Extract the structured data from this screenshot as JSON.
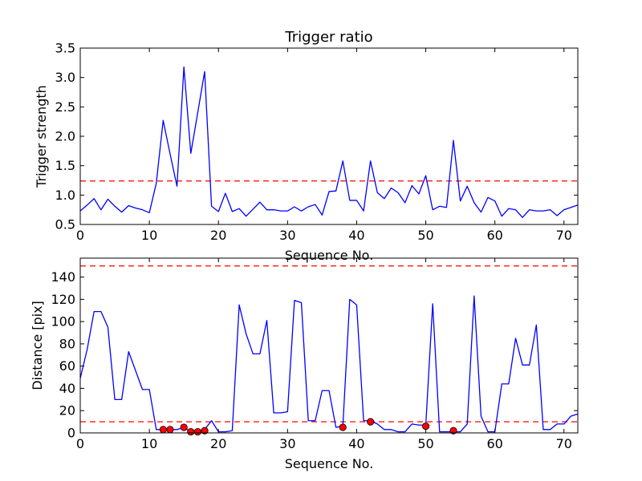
{
  "chart_data": [
    {
      "type": "line",
      "title": "Trigger ratio",
      "xlabel": "Sequence No.",
      "ylabel": "Trigger strength",
      "xlim": [
        0,
        72
      ],
      "ylim": [
        0.5,
        3.5
      ],
      "xticks": [
        "0",
        "10",
        "20",
        "30",
        "40",
        "50",
        "60",
        "70"
      ],
      "yticks": [
        "0.5",
        "1.0",
        "1.5",
        "2.0",
        "2.5",
        "3.0",
        "3.5"
      ],
      "x": [
        0,
        1,
        2,
        3,
        4,
        5,
        6,
        7,
        8,
        9,
        10,
        11,
        12,
        13,
        14,
        15,
        16,
        17,
        18,
        19,
        20,
        21,
        22,
        23,
        24,
        25,
        26,
        27,
        28,
        29,
        30,
        31,
        32,
        33,
        34,
        35,
        36,
        37,
        38,
        39,
        40,
        41,
        42,
        43,
        44,
        45,
        46,
        47,
        48,
        49,
        50,
        51,
        52,
        53,
        54,
        55,
        56,
        57,
        58,
        59,
        60,
        61,
        62,
        63,
        64,
        65,
        66,
        67,
        68,
        69,
        70,
        71,
        72
      ],
      "series": [
        {
          "color": "#0000ff",
          "values": [
            0.73,
            0.83,
            0.94,
            0.75,
            0.93,
            0.81,
            0.71,
            0.82,
            0.78,
            0.75,
            0.7,
            1.2,
            2.27,
            1.7,
            1.15,
            3.18,
            1.71,
            2.4,
            3.1,
            0.81,
            0.72,
            1.03,
            0.72,
            0.77,
            0.64,
            0.76,
            0.88,
            0.75,
            0.75,
            0.73,
            0.73,
            0.8,
            0.73,
            0.8,
            0.84,
            0.66,
            1.06,
            1.07,
            1.58,
            0.91,
            0.91,
            0.73,
            1.58,
            1.04,
            0.94,
            1.12,
            1.04,
            0.87,
            1.16,
            1.02,
            1.33,
            0.75,
            0.81,
            0.79,
            1.93,
            0.9,
            1.15,
            0.87,
            0.71,
            0.96,
            0.9,
            0.64,
            0.77,
            0.75,
            0.62,
            0.75,
            0.73,
            0.73,
            0.75,
            0.65,
            0.75,
            0.79,
            0.83
          ]
        }
      ],
      "hlines": [
        {
          "y": 1.24,
          "color": "#ff0000",
          "style": "dashed"
        }
      ]
    },
    {
      "type": "line",
      "title": "",
      "xlabel": "Sequence No.",
      "ylabel": "Distance [pix]",
      "xlim": [
        0,
        72
      ],
      "ylim": [
        0,
        157
      ],
      "xticks": [
        "0",
        "10",
        "20",
        "30",
        "40",
        "50",
        "60",
        "70"
      ],
      "yticks": [
        "0",
        "20",
        "40",
        "60",
        "80",
        "100",
        "120",
        "140"
      ],
      "x": [
        0,
        1,
        2,
        3,
        4,
        5,
        6,
        7,
        8,
        9,
        10,
        11,
        12,
        13,
        14,
        15,
        16,
        17,
        18,
        19,
        20,
        21,
        22,
        23,
        24,
        25,
        26,
        27,
        28,
        29,
        30,
        31,
        32,
        33,
        34,
        35,
        36,
        37,
        38,
        39,
        40,
        41,
        42,
        43,
        44,
        45,
        46,
        47,
        48,
        49,
        50,
        51,
        52,
        53,
        54,
        55,
        56,
        57,
        58,
        59,
        60,
        61,
        62,
        63,
        64,
        65,
        66,
        67,
        68,
        69,
        70,
        71,
        72
      ],
      "series": [
        {
          "color": "#0000ff",
          "values": [
            49,
            75,
            109,
            109,
            95,
            30,
            30,
            73,
            56,
            39,
            39,
            3,
            3,
            3,
            3,
            5,
            1,
            1,
            3,
            11,
            1,
            1,
            2,
            115,
            89,
            71,
            71,
            101,
            18,
            18,
            19,
            119,
            117,
            11,
            11,
            38,
            38,
            5,
            6,
            120,
            115,
            11,
            11,
            8,
            3,
            3,
            1,
            1,
            8,
            7,
            7,
            116,
            1,
            1,
            1,
            1,
            8,
            123,
            15,
            1,
            1,
            44,
            44,
            85,
            61,
            61,
            97,
            3,
            3,
            8,
            8,
            15,
            17
          ]
        }
      ],
      "markers": {
        "color": "#ff0000",
        "x": [
          12,
          13,
          15,
          16,
          17,
          18,
          38,
          42,
          50,
          54
        ],
        "y": [
          3,
          3,
          5,
          1,
          1,
          2,
          5,
          10,
          6,
          2
        ]
      },
      "hlines": [
        {
          "y": 150,
          "color": "#ff0000",
          "style": "dashed"
        },
        {
          "y": 10,
          "color": "#ff0000",
          "style": "dashed"
        }
      ]
    }
  ]
}
